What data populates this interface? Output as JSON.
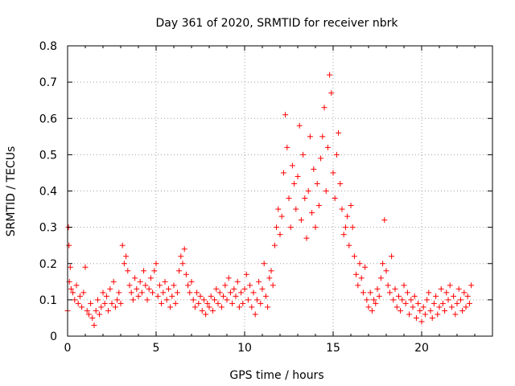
{
  "chart_data": {
    "type": "scatter",
    "title": "Day 361 of 2020, SRMTID for receiver nbrk",
    "xlabel": "GPS time / hours",
    "ylabel": "SRMTID / TECUs",
    "xlim": [
      0,
      24
    ],
    "ylim": [
      0,
      0.8
    ],
    "xticks": [
      0,
      5,
      10,
      15,
      20
    ],
    "yticks": [
      0,
      0.1,
      0.2,
      0.3,
      0.4,
      0.5,
      0.6,
      0.7,
      0.8
    ],
    "grid": true,
    "marker": "+",
    "color": "#ff0000",
    "series": [
      {
        "name": "SRMTID",
        "points": [
          [
            0.0,
            0.07
          ],
          [
            0.05,
            0.3
          ],
          [
            0.08,
            0.25
          ],
          [
            0.1,
            0.15
          ],
          [
            0.15,
            0.19
          ],
          [
            0.2,
            0.13
          ],
          [
            0.3,
            0.12
          ],
          [
            0.4,
            0.1
          ],
          [
            0.5,
            0.14
          ],
          [
            0.6,
            0.09
          ],
          [
            0.7,
            0.11
          ],
          [
            0.8,
            0.08
          ],
          [
            0.9,
            0.12
          ],
          [
            1.0,
            0.19
          ],
          [
            1.1,
            0.07
          ],
          [
            1.2,
            0.06
          ],
          [
            1.3,
            0.09
          ],
          [
            1.4,
            0.05
          ],
          [
            1.5,
            0.03
          ],
          [
            1.6,
            0.07
          ],
          [
            1.7,
            0.1
          ],
          [
            1.8,
            0.06
          ],
          [
            1.9,
            0.08
          ],
          [
            2.0,
            0.12
          ],
          [
            2.1,
            0.09
          ],
          [
            2.2,
            0.11
          ],
          [
            2.3,
            0.07
          ],
          [
            2.4,
            0.13
          ],
          [
            2.5,
            0.09
          ],
          [
            2.6,
            0.15
          ],
          [
            2.7,
            0.08
          ],
          [
            2.8,
            0.1
          ],
          [
            2.9,
            0.12
          ],
          [
            3.0,
            0.09
          ],
          [
            3.1,
            0.25
          ],
          [
            3.2,
            0.2
          ],
          [
            3.3,
            0.22
          ],
          [
            3.4,
            0.18
          ],
          [
            3.5,
            0.14
          ],
          [
            3.6,
            0.12
          ],
          [
            3.7,
            0.1
          ],
          [
            3.8,
            0.16
          ],
          [
            3.9,
            0.13
          ],
          [
            4.0,
            0.11
          ],
          [
            4.1,
            0.15
          ],
          [
            4.2,
            0.12
          ],
          [
            4.3,
            0.18
          ],
          [
            4.4,
            0.14
          ],
          [
            4.5,
            0.1
          ],
          [
            4.6,
            0.13
          ],
          [
            4.7,
            0.16
          ],
          [
            4.8,
            0.12
          ],
          [
            4.9,
            0.18
          ],
          [
            5.0,
            0.2
          ],
          [
            5.1,
            0.11
          ],
          [
            5.2,
            0.14
          ],
          [
            5.3,
            0.09
          ],
          [
            5.4,
            0.12
          ],
          [
            5.5,
            0.15
          ],
          [
            5.6,
            0.1
          ],
          [
            5.7,
            0.13
          ],
          [
            5.8,
            0.08
          ],
          [
            5.9,
            0.11
          ],
          [
            6.0,
            0.14
          ],
          [
            6.1,
            0.09
          ],
          [
            6.2,
            0.12
          ],
          [
            6.3,
            0.18
          ],
          [
            6.4,
            0.22
          ],
          [
            6.5,
            0.2
          ],
          [
            6.6,
            0.24
          ],
          [
            6.7,
            0.17
          ],
          [
            6.8,
            0.14
          ],
          [
            6.9,
            0.12
          ],
          [
            7.0,
            0.15
          ],
          [
            7.1,
            0.1
          ],
          [
            7.2,
            0.08
          ],
          [
            7.3,
            0.12
          ],
          [
            7.4,
            0.09
          ],
          [
            7.5,
            0.11
          ],
          [
            7.6,
            0.07
          ],
          [
            7.7,
            0.1
          ],
          [
            7.8,
            0.06
          ],
          [
            7.9,
            0.09
          ],
          [
            8.0,
            0.08
          ],
          [
            8.1,
            0.11
          ],
          [
            8.2,
            0.07
          ],
          [
            8.3,
            0.1
          ],
          [
            8.4,
            0.13
          ],
          [
            8.5,
            0.09
          ],
          [
            8.6,
            0.12
          ],
          [
            8.7,
            0.08
          ],
          [
            8.8,
            0.11
          ],
          [
            8.9,
            0.14
          ],
          [
            9.0,
            0.1
          ],
          [
            9.1,
            0.16
          ],
          [
            9.2,
            0.12
          ],
          [
            9.3,
            0.09
          ],
          [
            9.4,
            0.13
          ],
          [
            9.5,
            0.11
          ],
          [
            9.6,
            0.15
          ],
          [
            9.7,
            0.08
          ],
          [
            9.8,
            0.12
          ],
          [
            9.9,
            0.09
          ],
          [
            10.0,
            0.13
          ],
          [
            10.1,
            0.17
          ],
          [
            10.2,
            0.1
          ],
          [
            10.3,
            0.14
          ],
          [
            10.4,
            0.08
          ],
          [
            10.5,
            0.12
          ],
          [
            10.6,
            0.06
          ],
          [
            10.7,
            0.1
          ],
          [
            10.8,
            0.15
          ],
          [
            10.9,
            0.09
          ],
          [
            11.0,
            0.13
          ],
          [
            11.1,
            0.2
          ],
          [
            11.2,
            0.11
          ],
          [
            11.3,
            0.08
          ],
          [
            11.4,
            0.16
          ],
          [
            11.5,
            0.18
          ],
          [
            11.6,
            0.14
          ],
          [
            11.7,
            0.25
          ],
          [
            11.8,
            0.3
          ],
          [
            11.9,
            0.35
          ],
          [
            12.0,
            0.28
          ],
          [
            12.1,
            0.33
          ],
          [
            12.2,
            0.45
          ],
          [
            12.3,
            0.61
          ],
          [
            12.4,
            0.52
          ],
          [
            12.5,
            0.38
          ],
          [
            12.6,
            0.3
          ],
          [
            12.7,
            0.47
          ],
          [
            12.8,
            0.42
          ],
          [
            12.9,
            0.35
          ],
          [
            13.0,
            0.44
          ],
          [
            13.1,
            0.58
          ],
          [
            13.2,
            0.32
          ],
          [
            13.3,
            0.5
          ],
          [
            13.4,
            0.38
          ],
          [
            13.5,
            0.27
          ],
          [
            13.6,
            0.4
          ],
          [
            13.7,
            0.55
          ],
          [
            13.8,
            0.34
          ],
          [
            13.9,
            0.46
          ],
          [
            14.0,
            0.3
          ],
          [
            14.1,
            0.42
          ],
          [
            14.2,
            0.36
          ],
          [
            14.3,
            0.49
          ],
          [
            14.4,
            0.55
          ],
          [
            14.5,
            0.63
          ],
          [
            14.6,
            0.4
          ],
          [
            14.7,
            0.52
          ],
          [
            14.8,
            0.72
          ],
          [
            14.9,
            0.67
          ],
          [
            15.0,
            0.45
          ],
          [
            15.1,
            0.38
          ],
          [
            15.2,
            0.5
          ],
          [
            15.3,
            0.56
          ],
          [
            15.4,
            0.42
          ],
          [
            15.5,
            0.35
          ],
          [
            15.6,
            0.28
          ],
          [
            15.7,
            0.3
          ],
          [
            15.8,
            0.33
          ],
          [
            15.9,
            0.25
          ],
          [
            16.0,
            0.36
          ],
          [
            16.1,
            0.3
          ],
          [
            16.2,
            0.22
          ],
          [
            16.3,
            0.17
          ],
          [
            16.4,
            0.14
          ],
          [
            16.5,
            0.2
          ],
          [
            16.6,
            0.16
          ],
          [
            16.7,
            0.12
          ],
          [
            16.8,
            0.19
          ],
          [
            16.9,
            0.1
          ],
          [
            17.0,
            0.08
          ],
          [
            17.1,
            0.12
          ],
          [
            17.2,
            0.07
          ],
          [
            17.3,
            0.1
          ],
          [
            17.4,
            0.09
          ],
          [
            17.5,
            0.13
          ],
          [
            17.6,
            0.11
          ],
          [
            17.7,
            0.16
          ],
          [
            17.8,
            0.2
          ],
          [
            17.9,
            0.32
          ],
          [
            18.0,
            0.18
          ],
          [
            18.1,
            0.14
          ],
          [
            18.2,
            0.12
          ],
          [
            18.3,
            0.22
          ],
          [
            18.4,
            0.1
          ],
          [
            18.5,
            0.13
          ],
          [
            18.6,
            0.08
          ],
          [
            18.7,
            0.11
          ],
          [
            18.8,
            0.07
          ],
          [
            18.9,
            0.1
          ],
          [
            19.0,
            0.14
          ],
          [
            19.1,
            0.09
          ],
          [
            19.2,
            0.12
          ],
          [
            19.3,
            0.06
          ],
          [
            19.4,
            0.1
          ],
          [
            19.5,
            0.08
          ],
          [
            19.6,
            0.11
          ],
          [
            19.7,
            0.05
          ],
          [
            19.8,
            0.09
          ],
          [
            19.9,
            0.07
          ],
          [
            20.0,
            0.04
          ],
          [
            20.1,
            0.08
          ],
          [
            20.2,
            0.06
          ],
          [
            20.3,
            0.1
          ],
          [
            20.4,
            0.12
          ],
          [
            20.5,
            0.07
          ],
          [
            20.6,
            0.05
          ],
          [
            20.7,
            0.09
          ],
          [
            20.8,
            0.11
          ],
          [
            20.9,
            0.06
          ],
          [
            21.0,
            0.08
          ],
          [
            21.1,
            0.13
          ],
          [
            21.2,
            0.09
          ],
          [
            21.3,
            0.07
          ],
          [
            21.4,
            0.12
          ],
          [
            21.5,
            0.1
          ],
          [
            21.6,
            0.14
          ],
          [
            21.7,
            0.08
          ],
          [
            21.8,
            0.11
          ],
          [
            21.9,
            0.06
          ],
          [
            22.0,
            0.09
          ],
          [
            22.1,
            0.13
          ],
          [
            22.2,
            0.1
          ],
          [
            22.3,
            0.07
          ],
          [
            22.4,
            0.12
          ],
          [
            22.5,
            0.08
          ],
          [
            22.6,
            0.11
          ],
          [
            22.7,
            0.09
          ],
          [
            22.8,
            0.14
          ]
        ]
      }
    ]
  }
}
